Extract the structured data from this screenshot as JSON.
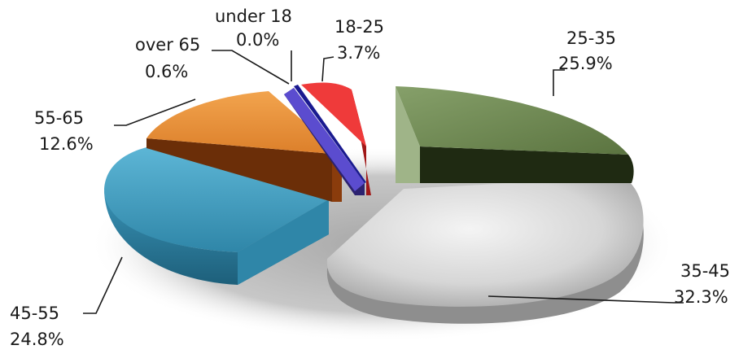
{
  "chart_data": {
    "type": "pie",
    "style": "3d-exploded",
    "title": "",
    "slices": [
      {
        "label": "under 18",
        "percent_label": "0.0%",
        "value": 0.0,
        "color": "#2a2ab8"
      },
      {
        "label": "18-25",
        "percent_label": "3.7%",
        "value": 3.7,
        "color": "#e83030"
      },
      {
        "label": "25-35",
        "percent_label": "25.9%",
        "value": 25.9,
        "color": "#76915a"
      },
      {
        "label": "35-45",
        "percent_label": "32.3%",
        "value": 32.3,
        "color": "#cfcfcf"
      },
      {
        "label": "45-55",
        "percent_label": "24.8%",
        "value": 24.8,
        "color": "#4aa6c8"
      },
      {
        "label": "55-65",
        "percent_label": "12.6%",
        "value": 12.6,
        "color": "#e8923a"
      },
      {
        "label": "over 65",
        "percent_label": "0.6%",
        "value": 0.6,
        "color": "#6a5acd"
      }
    ],
    "legend": "none"
  }
}
